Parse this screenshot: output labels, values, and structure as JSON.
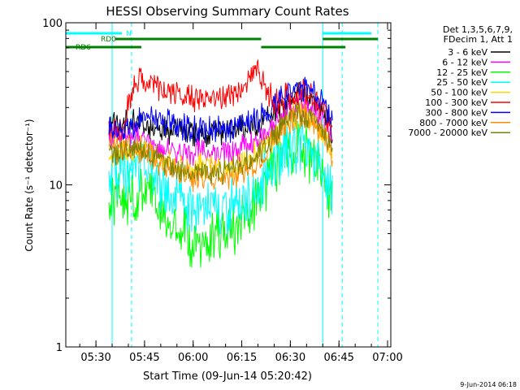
{
  "chart_data": {
    "type": "line",
    "title": "HESSI Observing Summary Count Rates",
    "xlabel": "Start Time (09-Jun-14 05:20:42)",
    "ylabel": "Count Rate (s⁻¹ detector⁻¹)",
    "yscale": "log",
    "ylim": [
      1,
      100
    ],
    "xlim_minutes_label": [
      "05:20:42",
      "07:01"
    ],
    "x_ticks": [
      "05:30",
      "05:45",
      "06:00",
      "06:15",
      "06:30",
      "06:45",
      "07:00"
    ],
    "y_ticks": [
      "1",
      "10",
      "100"
    ],
    "legend_header": [
      "Det 1,3,5,6,7,9,",
      "FDecim 1, Att 1"
    ],
    "legend_placement": "right",
    "series": [
      {
        "name": "3 - 6 keV",
        "color": "#000000",
        "x": [
          "05:34",
          "05:38",
          "05:42",
          "05:45",
          "05:50",
          "05:55",
          "06:00",
          "06:05",
          "06:10",
          "06:15",
          "06:20",
          "06:25",
          "06:30",
          "06:33",
          "06:36",
          "06:40",
          "06:43"
        ],
        "y": [
          24,
          24,
          24,
          23,
          22,
          21,
          21,
          21,
          21,
          22,
          23,
          28,
          34,
          36,
          34,
          28,
          21
        ]
      },
      {
        "name": "6 - 12 keV",
        "color": "#ff00ff",
        "x": [
          "05:34",
          "05:38",
          "05:42",
          "05:45",
          "05:50",
          "05:55",
          "06:00",
          "06:05",
          "06:10",
          "06:15",
          "06:20",
          "06:25",
          "06:30",
          "06:33",
          "06:36",
          "06:40",
          "06:43"
        ],
        "y": [
          20,
          20,
          20,
          19,
          17,
          16,
          16,
          16,
          16,
          17,
          18,
          23,
          30,
          32,
          30,
          25,
          19
        ]
      },
      {
        "name": "12 - 25 keV",
        "color": "#00ff00",
        "x": [
          "05:34",
          "05:38",
          "05:42",
          "05:45",
          "05:50",
          "05:55",
          "06:00",
          "06:05",
          "06:10",
          "06:15",
          "06:20",
          "06:25",
          "06:30",
          "06:33",
          "06:36",
          "06:40",
          "06:43"
        ],
        "y": [
          8.5,
          8.5,
          8.5,
          9,
          7,
          5.5,
          4.5,
          4.5,
          5,
          6,
          8,
          13,
          17,
          18,
          15,
          12,
          8
        ]
      },
      {
        "name": "25 - 50 keV",
        "color": "#00ffff",
        "x": [
          "05:34",
          "05:38",
          "05:42",
          "05:45",
          "05:50",
          "05:55",
          "06:00",
          "06:05",
          "06:10",
          "06:15",
          "06:20",
          "06:25",
          "06:30",
          "06:33",
          "06:36",
          "06:40",
          "06:43"
        ],
        "y": [
          12,
          12,
          12,
          13,
          10,
          8,
          7,
          7,
          7,
          8,
          10,
          14,
          17,
          18,
          16,
          13,
          9
        ]
      },
      {
        "name": "50 - 100 keV",
        "color": "#ffd700",
        "x": [
          "05:34",
          "05:38",
          "05:42",
          "05:45",
          "05:50",
          "05:55",
          "06:00",
          "06:05",
          "06:10",
          "06:15",
          "06:20",
          "06:25",
          "06:30",
          "06:33",
          "06:36",
          "06:40",
          "06:43"
        ],
        "y": [
          16,
          16,
          16,
          17,
          15,
          13,
          13,
          13,
          13,
          14,
          16,
          20,
          26,
          28,
          26,
          22,
          16
        ]
      },
      {
        "name": "100 - 300 keV",
        "color": "#ff0000",
        "x": [
          "05:34",
          "05:38",
          "05:42",
          "05:45",
          "05:50",
          "05:55",
          "06:00",
          "06:05",
          "06:10",
          "06:15",
          "06:20",
          "06:25",
          "06:30",
          "06:33",
          "06:36",
          "06:40",
          "06:43"
        ],
        "y": [
          22,
          22,
          44,
          44,
          40,
          36,
          34,
          34,
          35,
          40,
          52,
          32,
          36,
          38,
          35,
          30,
          22
        ]
      },
      {
        "name": "300 - 800 keV",
        "color": "#0000ff",
        "x": [
          "05:34",
          "05:38",
          "05:42",
          "05:45",
          "05:50",
          "05:55",
          "06:00",
          "06:05",
          "06:10",
          "06:15",
          "06:20",
          "06:25",
          "06:30",
          "06:33",
          "06:36",
          "06:40",
          "06:43"
        ],
        "y": [
          22,
          22,
          22,
          28,
          25,
          23,
          22,
          22,
          22,
          23,
          25,
          30,
          38,
          40,
          38,
          32,
          23
        ]
      },
      {
        "name": "800 - 7000 keV",
        "color": "#ff8c00",
        "x": [
          "05:34",
          "05:38",
          "05:42",
          "05:45",
          "05:50",
          "05:55",
          "06:00",
          "06:05",
          "06:10",
          "06:15",
          "06:20",
          "06:25",
          "06:30",
          "06:33",
          "06:36",
          "06:40",
          "06:43"
        ],
        "y": [
          17,
          17,
          17,
          16,
          13,
          12,
          11,
          11,
          11,
          12,
          14,
          19,
          25,
          27,
          25,
          21,
          15
        ]
      },
      {
        "name": "7000 - 20000 keV",
        "color": "#808000",
        "x": [
          "05:34",
          "05:38",
          "05:42",
          "05:45",
          "05:50",
          "05:55",
          "06:00",
          "06:05",
          "06:10",
          "06:15",
          "06:20",
          "06:25",
          "06:30",
          "06:33",
          "06:36",
          "06:40",
          "06:43"
        ],
        "y": [
          16,
          16,
          16,
          16,
          14,
          13,
          12,
          12,
          12,
          13,
          15,
          20,
          26,
          28,
          26,
          22,
          16
        ]
      }
    ],
    "flag_bars": [
      {
        "label": "N",
        "color": "#00ffff",
        "segments": [
          [
            "05:20:42",
            "05:38"
          ],
          [
            "06:40",
            "06:55"
          ]
        ]
      },
      {
        "label": "RD0",
        "color": "#008000",
        "segments": [
          [
            "05:36",
            "06:21"
          ],
          [
            "06:40",
            "06:57"
          ]
        ]
      },
      {
        "label": "RD6",
        "color": "#008000",
        "segments": [
          [
            "05:20:42",
            "05:44"
          ],
          [
            "06:21",
            "06:47"
          ]
        ]
      }
    ],
    "vertical_markers": [
      {
        "x": "05:20:42",
        "color": "#00ffff",
        "style": "solid"
      },
      {
        "x": "05:35",
        "color": "#00ffff",
        "style": "solid"
      },
      {
        "x": "05:41",
        "color": "#00ffff",
        "style": "dashed"
      },
      {
        "x": "06:40",
        "color": "#00ffff",
        "style": "solid"
      },
      {
        "x": "06:46",
        "color": "#00ffff",
        "style": "dashed"
      },
      {
        "x": "06:57",
        "color": "#00ffff",
        "style": "dashed"
      }
    ],
    "grid": false
  },
  "footer": {
    "timestamp": "9-Jun-2014 06:18"
  }
}
